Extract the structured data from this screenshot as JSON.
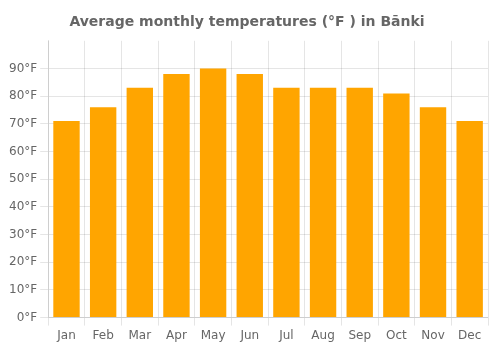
{
  "chart_data": {
    "type": "bar",
    "title": "Average monthly temperatures (°F ) in Bānki",
    "categories": [
      "Jan",
      "Feb",
      "Mar",
      "Apr",
      "May",
      "Jun",
      "Jul",
      "Aug",
      "Sep",
      "Oct",
      "Nov",
      "Dec"
    ],
    "values": [
      71,
      76,
      83,
      88,
      90,
      88,
      83,
      83,
      83,
      81,
      76,
      71
    ],
    "color": "#FFA500",
    "ylim": [
      0,
      100
    ],
    "yticks": [
      {
        "value": 0,
        "label": "0°F"
      },
      {
        "value": 10,
        "label": "10°F"
      },
      {
        "value": 20,
        "label": "20°F"
      },
      {
        "value": 30,
        "label": "30°F"
      },
      {
        "value": 40,
        "label": "40°F"
      },
      {
        "value": 50,
        "label": "50°F"
      },
      {
        "value": 60,
        "label": "60°F"
      },
      {
        "value": 70,
        "label": "70°F"
      },
      {
        "value": 80,
        "label": "80°F"
      },
      {
        "value": 90,
        "label": "90°F"
      }
    ],
    "grid": true
  }
}
